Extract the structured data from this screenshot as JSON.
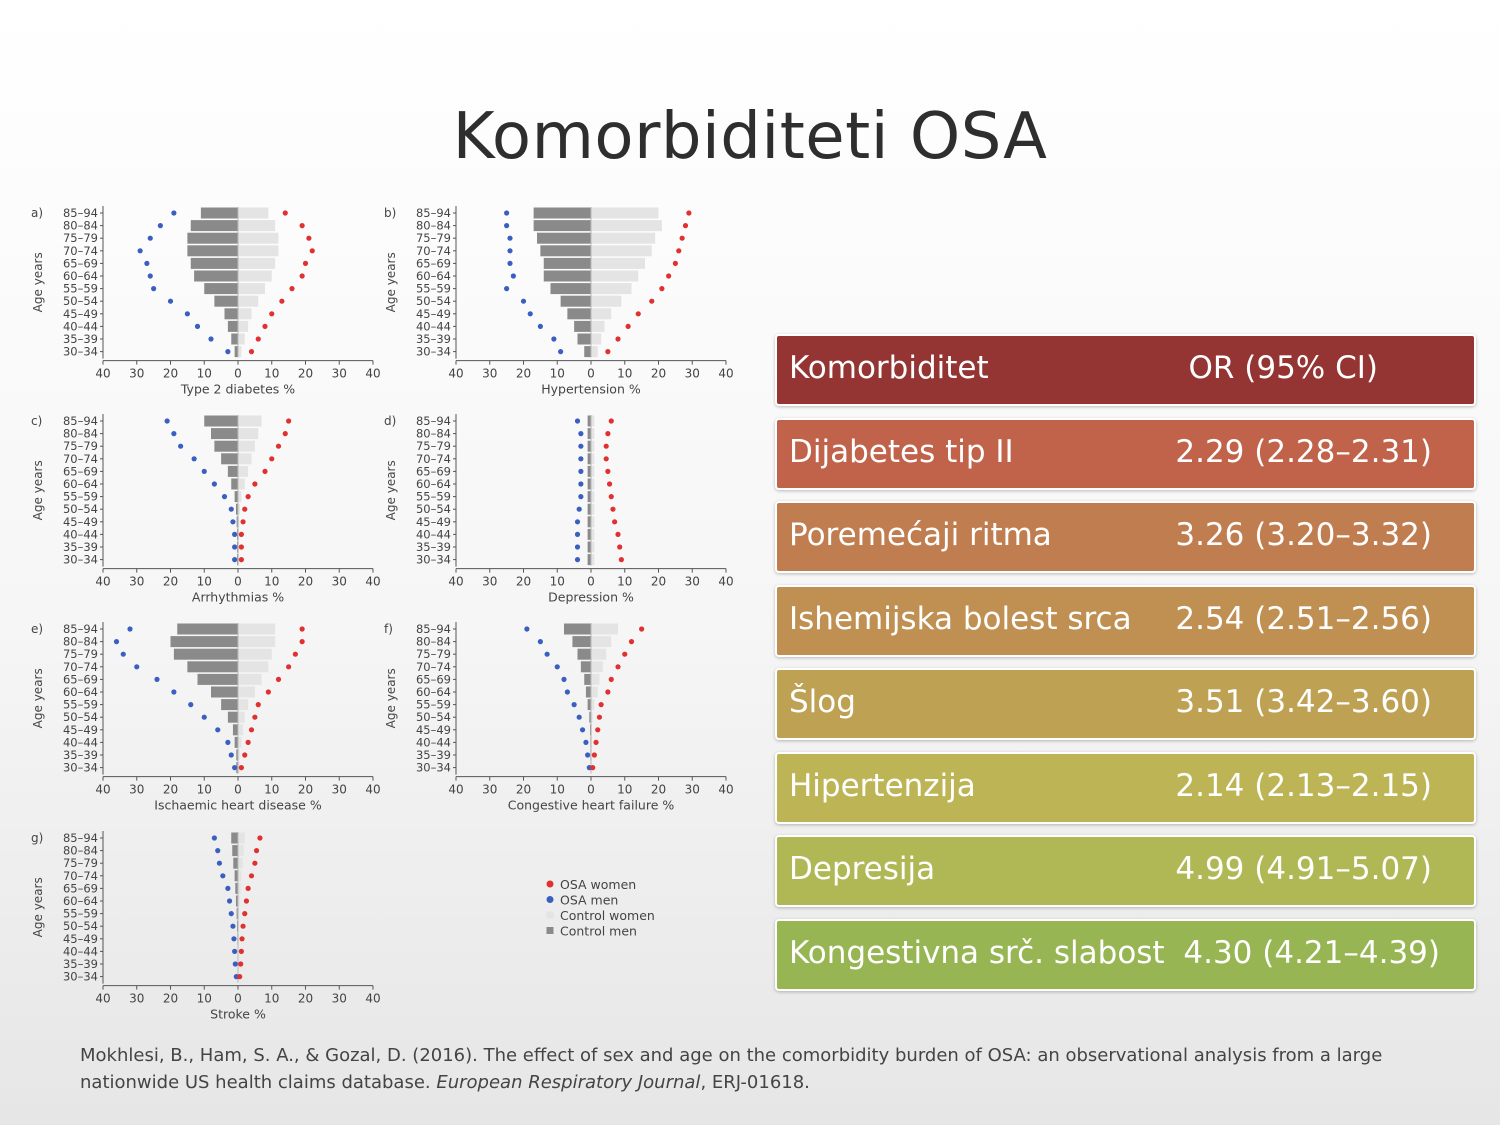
{
  "slide": {
    "title": "Komorbiditeti OSA",
    "citation": {
      "text_before": "Mokhlesi, B., Ham, S. A., & Gozal, D. (2016). The effect of sex and age on the comorbidity burden of OSA: an observational analysis from a large nationwide US health claims database. ",
      "journal": "European Respiratory Journal",
      "text_after": ", ERJ-01618."
    }
  },
  "or_table": {
    "header": {
      "label": "Komorbiditet",
      "value": "OR (95% CI)",
      "color": "#943534"
    },
    "rows": [
      {
        "label": "Dijabetes tip II",
        "value": "2.29 (2.28–2.31)",
        "color": "#c0634a"
      },
      {
        "label": "Poremećaji ritma",
        "value": "3.26 (3.20–3.32)",
        "color": "#c07d4f"
      },
      {
        "label": "Ishemijska bolest srca",
        "value": "2.54 (2.51–2.56)",
        "color": "#c08f52"
      },
      {
        "label": "Šlog",
        "value": "3.51 (3.42–3.60)",
        "color": "#bfa153"
      },
      {
        "label": "Hipertenzija",
        "value": "2.14 (2.13–2.15)",
        "color": "#bdb555"
      },
      {
        "label": "Depresija",
        "value": "4.99 (4.91–5.07)",
        "color": "#b0b855"
      },
      {
        "label": "Kongestivna srč. slabost",
        "value": "4.30 (4.21–4.39)",
        "color": "#97b552"
      }
    ]
  },
  "colors": {
    "osa_women": "#e03030",
    "osa_men": "#3a5fc0",
    "control_women": "#e4e4e4",
    "control_men": "#8a8a8a"
  },
  "chart_data": {
    "type": "bar",
    "subtype": "population-pyramid",
    "age_groups": [
      "85–94",
      "80–84",
      "75–79",
      "70–74",
      "65–69",
      "60–64",
      "55–59",
      "50–54",
      "45–49",
      "40–44",
      "35–39",
      "30–34"
    ],
    "xticks": [
      "40",
      "30",
      "20",
      "10",
      "0",
      "10",
      "20",
      "30",
      "40"
    ],
    "xlim": [
      -40,
      40
    ],
    "ylabel": "Age years",
    "legend": {
      "placement": "bottom-right",
      "entries": [
        "OSA women",
        "OSA men",
        "Control women",
        "Control men"
      ]
    },
    "panels": [
      {
        "letter": "a)",
        "xlabel": "Type 2 diabetes %",
        "osa_women": [
          14,
          19,
          21,
          22,
          20,
          19,
          16,
          13,
          10,
          8,
          6,
          4
        ],
        "osa_men": [
          19,
          23,
          26,
          29,
          27,
          26,
          25,
          20,
          15,
          12,
          8,
          3
        ],
        "control_women": [
          9,
          11,
          12,
          12,
          11,
          10,
          8,
          6,
          4,
          3,
          2,
          1
        ],
        "control_men": [
          11,
          14,
          15,
          15,
          14,
          13,
          10,
          7,
          4,
          3,
          2,
          1
        ]
      },
      {
        "letter": "b)",
        "xlabel": "Hypertension %",
        "osa_women": [
          29,
          28,
          27,
          26,
          25,
          23,
          21,
          18,
          14,
          11,
          8,
          5
        ],
        "osa_men": [
          25,
          25,
          24,
          24,
          24,
          23,
          25,
          20,
          18,
          15,
          11,
          9
        ],
        "control_women": [
          20,
          21,
          19,
          18,
          16,
          14,
          12,
          9,
          6,
          4,
          3,
          2
        ],
        "control_men": [
          17,
          17,
          16,
          15,
          14,
          14,
          12,
          9,
          7,
          5,
          4,
          2
        ]
      },
      {
        "letter": "c)",
        "xlabel": "Arrhythmias %",
        "osa_women": [
          15,
          14,
          12,
          10,
          8,
          5,
          3,
          2,
          1.5,
          1,
          1,
          1
        ],
        "osa_men": [
          21,
          19,
          17,
          13,
          10,
          7,
          4,
          2,
          1.5,
          1,
          1,
          1
        ],
        "control_women": [
          7,
          6,
          5,
          4,
          3,
          2,
          1,
          0.6,
          0.4,
          0.3,
          0.3,
          0.3
        ],
        "control_men": [
          10,
          8,
          7,
          5,
          3,
          2,
          1,
          0.6,
          0.4,
          0.3,
          0.3,
          0.3
        ]
      },
      {
        "letter": "d)",
        "xlabel": "Depression %",
        "osa_women": [
          6,
          5,
          4.5,
          4.5,
          5,
          5.5,
          6,
          6.5,
          7,
          8,
          8.5,
          9
        ],
        "osa_men": [
          4,
          3,
          3,
          3,
          3,
          3,
          3,
          3.5,
          4,
          4,
          4,
          4
        ],
        "control_women": [
          1,
          1,
          1,
          1,
          1,
          1,
          1,
          1,
          1,
          1,
          1,
          1
        ],
        "control_men": [
          1,
          1,
          1,
          1,
          1,
          1,
          1,
          1,
          1,
          1,
          1,
          1
        ]
      },
      {
        "letter": "e)",
        "xlabel": "Ischaemic heart disease %",
        "osa_women": [
          19,
          19,
          17,
          15,
          12,
          9,
          6,
          5,
          4,
          3,
          2,
          1
        ],
        "osa_men": [
          32,
          36,
          34,
          30,
          24,
          19,
          14,
          10,
          6,
          3,
          2,
          1
        ],
        "control_women": [
          11,
          11,
          10,
          9,
          7,
          5,
          3,
          2,
          1.5,
          1,
          0.5,
          0.5
        ],
        "control_men": [
          18,
          20,
          19,
          15,
          12,
          8,
          5,
          3,
          1.5,
          1,
          0.5,
          0.5
        ]
      },
      {
        "letter": "f)",
        "xlabel": "Congestive heart failure %",
        "osa_women": [
          15,
          12,
          10,
          8,
          6,
          5,
          3,
          2.5,
          2,
          1.5,
          1,
          0.5
        ],
        "osa_men": [
          19,
          15,
          13,
          10,
          8,
          7,
          5,
          3.5,
          2.5,
          1.5,
          1,
          0.5
        ],
        "control_women": [
          8,
          6,
          4.5,
          3.5,
          2.5,
          2,
          1,
          0.5,
          0.3,
          0.2,
          0.2,
          0.1
        ],
        "control_men": [
          8,
          5.5,
          4,
          3,
          2,
          1.5,
          1,
          0.5,
          0.3,
          0.2,
          0.2,
          0.1
        ]
      },
      {
        "letter": "g)",
        "xlabel": "Stroke %",
        "osa_women": [
          6.5,
          5.5,
          5,
          4,
          3,
          2.5,
          2,
          1.5,
          1.2,
          1,
          0.8,
          0.5
        ],
        "osa_men": [
          7,
          6,
          5.5,
          4.5,
          3,
          2.5,
          2,
          1.5,
          1.2,
          1,
          0.8,
          0.5
        ],
        "control_women": [
          2,
          1.7,
          1.4,
          1,
          0.8,
          0.6,
          0.4,
          0.3,
          0.2,
          0.1,
          0.1,
          0.1
        ],
        "control_men": [
          2,
          1.7,
          1.4,
          1,
          0.8,
          0.6,
          0.4,
          0.3,
          0.2,
          0.1,
          0.1,
          0.1
        ]
      }
    ]
  }
}
